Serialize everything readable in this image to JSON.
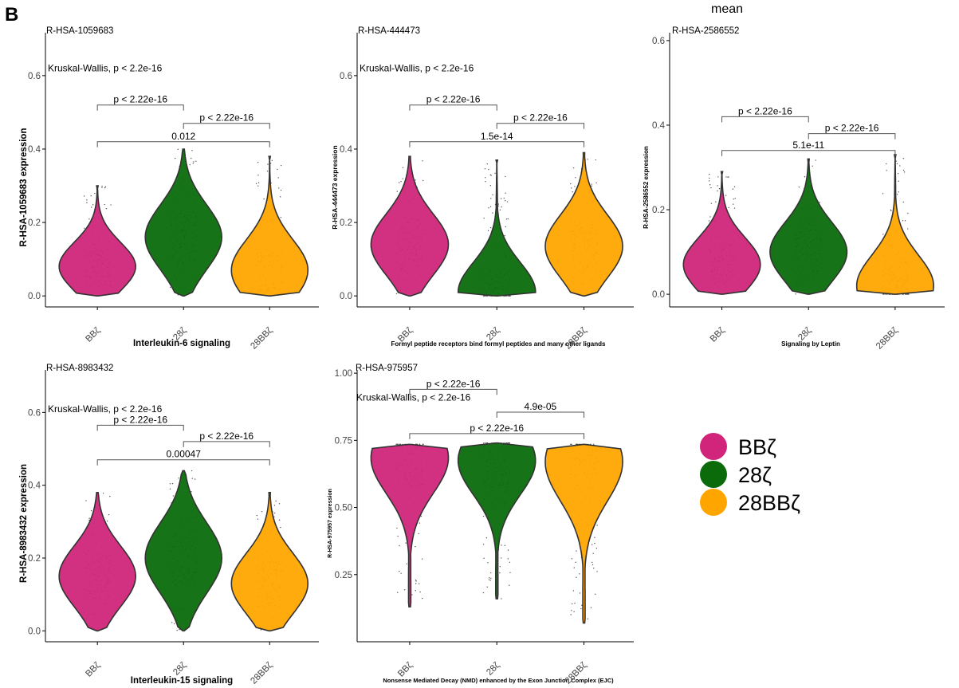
{
  "figure": {
    "panel_letter": "B",
    "top_label": "mean"
  },
  "colors": {
    "BBz": "#d0257a",
    "28z": "#0b6b0b",
    "28BBz": "#ffa500",
    "outline": "#333333"
  },
  "legend": [
    {
      "label": "BBζ",
      "color": "#d0257a"
    },
    {
      "label": "28ζ",
      "color": "#0b6b0b"
    },
    {
      "label": "28BBζ",
      "color": "#ffa500"
    }
  ],
  "chart_data": [
    {
      "type": "violin",
      "title": "R-HSA-1059683",
      "xlabel": "Interleukin-6 signaling",
      "ylabel": "R-HSA-1059683 expression",
      "categories": [
        "BBζ",
        "28ζ",
        "28BBζ"
      ],
      "ylim": [
        -0.03,
        0.73
      ],
      "yticks": [
        "0.0",
        "0.2",
        "0.4",
        "0.6"
      ],
      "yticks_values": [
        0,
        0.2,
        0.4,
        0.6
      ],
      "series": [
        {
          "min": 0.0,
          "max": 0.3,
          "mode": 0.08
        },
        {
          "min": 0.0,
          "max": 0.4,
          "mode": 0.16
        },
        {
          "min": 0.0,
          "max": 0.38,
          "mode": 0.07
        }
      ],
      "kruskal": "Kruskal-Wallis, p < 2.2e-16",
      "kruskal_y": 0.62,
      "comparisons": [
        {
          "from": 0,
          "to": 1,
          "y": 0.52,
          "label": "p < 2.22e-16"
        },
        {
          "from": 1,
          "to": 2,
          "y": 0.47,
          "label": "p < 2.22e-16"
        },
        {
          "from": 0,
          "to": 2,
          "y": 0.42,
          "label": "0.012"
        }
      ]
    },
    {
      "type": "violin",
      "title": "R-HSA-444473",
      "xlabel": "Formyl peptide receptors bind formyl peptides and many other ligands",
      "ylabel": "R-HSA-444473 expression",
      "categories": [
        "BBζ",
        "28ζ",
        "28BBζ"
      ],
      "ylim": [
        -0.03,
        0.73
      ],
      "yticks": [
        "0.0",
        "0.2",
        "0.4",
        "0.6"
      ],
      "yticks_values": [
        0,
        0.2,
        0.4,
        0.6
      ],
      "series": [
        {
          "min": 0.0,
          "max": 0.38,
          "mode": 0.14
        },
        {
          "min": 0.0,
          "max": 0.37,
          "mode": 0.01
        },
        {
          "min": 0.0,
          "max": 0.39,
          "mode": 0.135
        }
      ],
      "kruskal": "Kruskal-Wallis, p < 2.2e-16",
      "kruskal_y": 0.62,
      "comparisons": [
        {
          "from": 0,
          "to": 1,
          "y": 0.52,
          "label": "p < 2.22e-16"
        },
        {
          "from": 1,
          "to": 2,
          "y": 0.47,
          "label": "p < 2.22e-16"
        },
        {
          "from": 0,
          "to": 2,
          "y": 0.42,
          "label": "1.5e-14"
        }
      ]
    },
    {
      "type": "violin",
      "title": "R-HSA-2586552",
      "xlabel": "Signaling by Leptin",
      "ylabel": "R-HSA-2586552 expression",
      "categories": [
        "BBζ",
        "28ζ",
        "28BBζ"
      ],
      "ylim": [
        -0.03,
        0.63
      ],
      "yticks": [
        "0.0",
        "0.2",
        "0.4",
        "0.6"
      ],
      "yticks_values": [
        0,
        0.2,
        0.4,
        0.6
      ],
      "series": [
        {
          "min": 0.0,
          "max": 0.29,
          "mode": 0.07
        },
        {
          "min": 0.0,
          "max": 0.32,
          "mode": 0.1
        },
        {
          "min": 0.0,
          "max": 0.33,
          "mode": 0.02
        }
      ],
      "comparisons": [
        {
          "from": 0,
          "to": 1,
          "y": 0.42,
          "label": "p < 2.22e-16"
        },
        {
          "from": 1,
          "to": 2,
          "y": 0.38,
          "label": "p < 2.22e-16"
        },
        {
          "from": 0,
          "to": 2,
          "y": 0.34,
          "label": "5.1e-11"
        }
      ]
    },
    {
      "type": "violin",
      "title": "R-HSA-8983432",
      "xlabel": "Interleukin-15 signaling",
      "ylabel": "R-HSA-8983432 expression",
      "categories": [
        "BBζ",
        "28ζ",
        "28BBζ"
      ],
      "ylim": [
        -0.03,
        0.73
      ],
      "yticks": [
        "0.0",
        "0.2",
        "0.4",
        "0.6"
      ],
      "yticks_values": [
        0,
        0.2,
        0.4,
        0.6
      ],
      "series": [
        {
          "min": 0.0,
          "max": 0.38,
          "mode": 0.15
        },
        {
          "min": 0.0,
          "max": 0.44,
          "mode": 0.2
        },
        {
          "min": 0.0,
          "max": 0.38,
          "mode": 0.13
        }
      ],
      "kruskal": "Kruskal-Wallis, p < 2.2e-16",
      "kruskal_y": 0.61,
      "comparisons": [
        {
          "from": 0,
          "to": 1,
          "y": 0.565,
          "label": "p < 2.22e-16"
        },
        {
          "from": 1,
          "to": 2,
          "y": 0.52,
          "label": "p < 2.22e-16"
        },
        {
          "from": 0,
          "to": 2,
          "y": 0.47,
          "label": "0.00047"
        }
      ]
    },
    {
      "type": "violin",
      "title": "R-HSA-975957",
      "xlabel": "Nonsense Mediated Decay (NMD) enhanced by the Exon Junction Complex (EJC)",
      "ylabel": "R-HSA-975957 expression",
      "categories": [
        "BBζ",
        "28ζ",
        "28BBζ"
      ],
      "ylim": [
        0.0,
        1.03
      ],
      "yticks": [
        "0.25",
        "0.50",
        "0.75",
        "1.00"
      ],
      "yticks_values": [
        0.25,
        0.5,
        0.75,
        1.0
      ],
      "series": [
        {
          "min": 0.13,
          "max": 0.735,
          "mode": 0.685
        },
        {
          "min": 0.16,
          "max": 0.74,
          "mode": 0.675
        },
        {
          "min": 0.07,
          "max": 0.735,
          "mode": 0.67
        }
      ],
      "kruskal": "Kruskal-Wallis, p < 2.2e-16",
      "kruskal_y": 0.91,
      "comparisons": [
        {
          "from": 0,
          "to": 1,
          "y": 0.94,
          "label": "p < 2.22e-16"
        },
        {
          "from": 1,
          "to": 2,
          "y": 0.855,
          "label": "4.9e-05"
        },
        {
          "from": 0,
          "to": 2,
          "y": 0.775,
          "label": "p < 2.22e-16"
        }
      ]
    }
  ]
}
